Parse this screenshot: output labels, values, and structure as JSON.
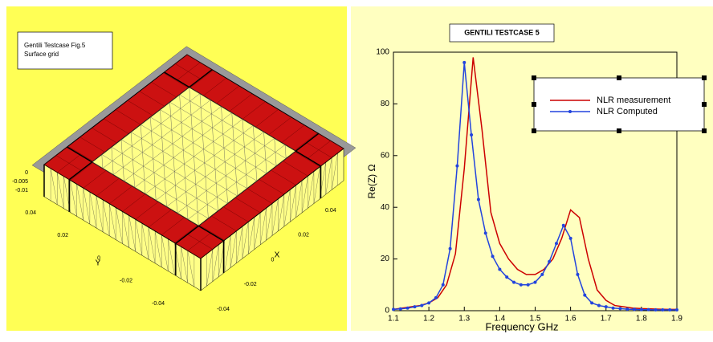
{
  "surface_plot": {
    "title_lines": [
      "Gentili Testcase Fig.5",
      "Surface grid"
    ],
    "z_ticks": [
      0,
      -0.005,
      -0.01
    ],
    "y_ticks": [
      0.04,
      0.02,
      0,
      -0.02,
      -0.04
    ],
    "x_ticks": [
      -0.04,
      -0.02,
      0,
      0.02,
      0.04
    ],
    "y_label": "Y",
    "x_label": "X"
  },
  "chart_data": {
    "type": "line",
    "title": "GENTILI TESTCASE 5",
    "x_label": "Frequency GHz",
    "y_label": "Re(Z) Ω",
    "xlim": [
      1.1,
      1.9
    ],
    "xticks": [
      1.1,
      1.2,
      1.3,
      1.4,
      1.5,
      1.6,
      1.7,
      1.8,
      1.9
    ],
    "ylim": [
      0,
      100
    ],
    "yticks": [
      0,
      20,
      40,
      60,
      80,
      100
    ],
    "series": [
      {
        "name": "NLR measurement",
        "color": "#cc0000",
        "marker": false,
        "x": [
          1.1,
          1.125,
          1.15,
          1.175,
          1.2,
          1.225,
          1.25,
          1.275,
          1.3,
          1.325,
          1.35,
          1.375,
          1.4,
          1.425,
          1.45,
          1.475,
          1.5,
          1.525,
          1.55,
          1.575,
          1.6,
          1.625,
          1.65,
          1.675,
          1.7,
          1.725,
          1.75,
          1.775,
          1.8,
          1.825,
          1.85,
          1.875,
          1.9
        ],
        "values": [
          0.5,
          1,
          1.5,
          2,
          3,
          5,
          10,
          22,
          55,
          98,
          70,
          38,
          26,
          20,
          16,
          14,
          14,
          16,
          20,
          28,
          39,
          36,
          20,
          8,
          4,
          2,
          1.5,
          1,
          0.8,
          0.7,
          0.6,
          0.5,
          0.5
        ]
      },
      {
        "name": "NLR Computed",
        "color": "#2244dd",
        "marker": true,
        "x": [
          1.1,
          1.12,
          1.14,
          1.16,
          1.18,
          1.2,
          1.22,
          1.24,
          1.26,
          1.28,
          1.3,
          1.32,
          1.34,
          1.36,
          1.38,
          1.4,
          1.42,
          1.44,
          1.46,
          1.48,
          1.5,
          1.52,
          1.54,
          1.56,
          1.58,
          1.6,
          1.62,
          1.64,
          1.66,
          1.68,
          1.7,
          1.72,
          1.74,
          1.76,
          1.78,
          1.8,
          1.82,
          1.84,
          1.86,
          1.88,
          1.9
        ],
        "values": [
          0.5,
          0.7,
          1,
          1.5,
          2,
          3,
          5,
          10,
          24,
          56,
          96,
          68,
          43,
          30,
          21,
          16,
          13,
          11,
          10,
          10,
          11,
          14,
          19,
          26,
          33,
          28,
          14,
          6,
          3,
          2,
          1.5,
          1,
          0.8,
          0.6,
          0.5,
          0.4,
          0.4,
          0.3,
          0.3,
          0.3,
          0.3
        ]
      }
    ]
  }
}
